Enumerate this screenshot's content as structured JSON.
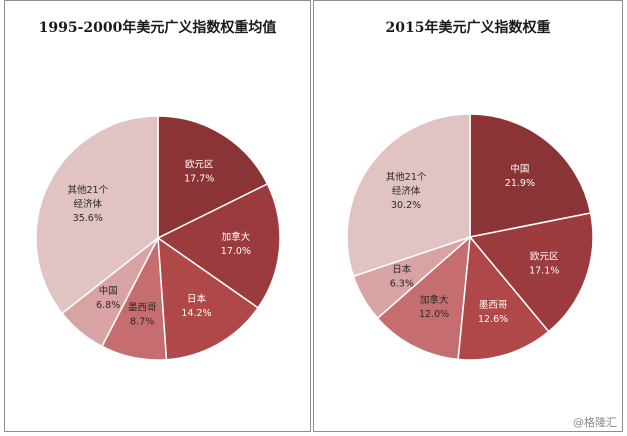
{
  "chart_data": [
    {
      "type": "pie",
      "title": "1995-2000年美元广义指数权重均值",
      "slices": [
        {
          "lines": [
            "欧元区"
          ],
          "pct": "17.7%",
          "value": 17.7,
          "color": "#8a3436",
          "text": "#ffffff"
        },
        {
          "lines": [
            "加拿大"
          ],
          "pct": "17.0%",
          "value": 17.0,
          "color": "#9c3b3d",
          "text": "#ffffff"
        },
        {
          "lines": [
            "日本"
          ],
          "pct": "14.2%",
          "value": 14.2,
          "color": "#b04749",
          "text": "#ffffff"
        },
        {
          "lines": [
            "墨西哥"
          ],
          "pct": "8.7%",
          "value": 8.7,
          "color": "#c66d6f",
          "text": "#2a2a2a"
        },
        {
          "lines": [
            "中国"
          ],
          "pct": "6.8%",
          "value": 6.8,
          "color": "#d9a2a3",
          "text": "#2a2a2a"
        },
        {
          "lines": [
            "其他21个",
            "经济体"
          ],
          "pct": "35.6%",
          "value": 35.6,
          "color": "#e1c3c4",
          "text": "#2a2a2a"
        }
      ]
    },
    {
      "type": "pie",
      "title": "2015年美元广义指数权重",
      "slices": [
        {
          "lines": [
            "中国"
          ],
          "pct": "21.9%",
          "value": 21.9,
          "color": "#8a3436",
          "text": "#ffffff"
        },
        {
          "lines": [
            "欧元区"
          ],
          "pct": "17.1%",
          "value": 17.1,
          "color": "#9c3b3d",
          "text": "#ffffff"
        },
        {
          "lines": [
            "墨西哥"
          ],
          "pct": "12.6%",
          "value": 12.6,
          "color": "#b04749",
          "text": "#ffffff"
        },
        {
          "lines": [
            "加拿大"
          ],
          "pct": "12.0%",
          "value": 12.0,
          "color": "#c66d6f",
          "text": "#2a2a2a"
        },
        {
          "lines": [
            "日本"
          ],
          "pct": "6.3%",
          "value": 6.3,
          "color": "#d9a2a3",
          "text": "#2a2a2a"
        },
        {
          "lines": [
            "其他21个",
            "经济体"
          ],
          "pct": "30.2%",
          "value": 30.2,
          "color": "#e1c3c4",
          "text": "#2a2a2a"
        }
      ]
    }
  ],
  "watermark": "@格隆汇"
}
